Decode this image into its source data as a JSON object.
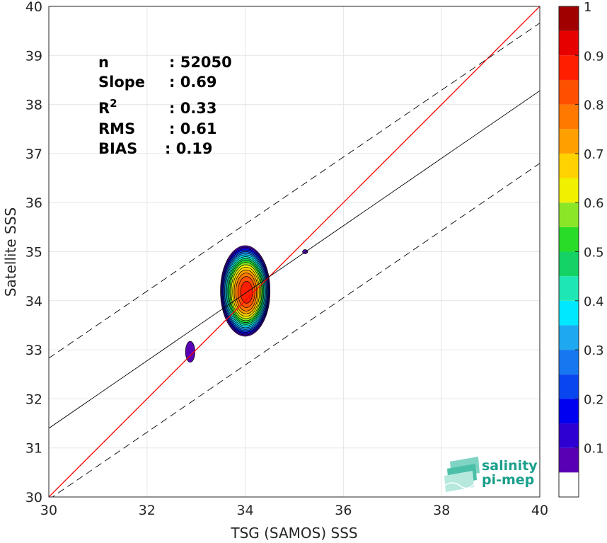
{
  "chart_data": {
    "type": "scatter",
    "subtype": "density contour",
    "xlabel": "TSG (SAMOS) SSS",
    "ylabel": "Satellite SSS",
    "xlim": [
      30,
      40
    ],
    "ylim": [
      30,
      40
    ],
    "xticks": [
      30,
      32,
      34,
      36,
      38,
      40
    ],
    "yticks": [
      30,
      31,
      32,
      33,
      34,
      35,
      36,
      37,
      38,
      39,
      40
    ],
    "grid": true,
    "stats": [
      {
        "label": "n",
        "value": ": 52050"
      },
      {
        "label": "Slope",
        "value": ": 0.69"
      },
      {
        "label": "R",
        "sup": "2",
        "value": ": 0.33"
      },
      {
        "label": "RMS",
        "value": ": 0.61"
      },
      {
        "label": "BIAS",
        "value": ": 0.19"
      }
    ],
    "lines": [
      {
        "name": "one-to-one",
        "color": "#ff0000",
        "style": "solid",
        "points": [
          [
            30,
            30
          ],
          [
            40,
            40
          ]
        ]
      },
      {
        "name": "regression",
        "color": "#000000",
        "style": "solid",
        "points": [
          [
            30,
            31.4
          ],
          [
            40,
            38.28
          ]
        ]
      },
      {
        "name": "upper-bound",
        "color": "#000000",
        "style": "dashed",
        "points": [
          [
            30,
            32.83
          ],
          [
            40,
            39.66
          ]
        ]
      },
      {
        "name": "lower-bound",
        "color": "#000000",
        "style": "dashed",
        "points": [
          [
            30,
            29.95
          ],
          [
            40,
            36.8
          ]
        ]
      }
    ],
    "density_blobs": [
      {
        "cx": 34.0,
        "cy": 34.2,
        "rx": 0.52,
        "ry": 0.95,
        "peak": 0.9
      },
      {
        "cx": 32.88,
        "cy": 32.96,
        "rx": 0.18,
        "ry": 0.4,
        "peak": 0.07
      },
      {
        "cx": 35.22,
        "cy": 35.0,
        "rx": 0.1,
        "ry": 0.08,
        "peak": 0.07
      }
    ],
    "colorbar": {
      "ticks": [
        "0.1",
        "0.2",
        "0.3",
        "0.4",
        "0.5",
        "0.6",
        "0.7",
        "0.8",
        "0.9",
        "1"
      ],
      "range": [
        0,
        1
      ],
      "levels": [
        {
          "from": 0.0,
          "to": 0.05,
          "color": "#ffffff"
        },
        {
          "from": 0.05,
          "to": 0.1,
          "color": "#5a00b4"
        },
        {
          "from": 0.1,
          "to": 0.15,
          "color": "#2e00d2"
        },
        {
          "from": 0.15,
          "to": 0.2,
          "color": "#0000f0"
        },
        {
          "from": 0.2,
          "to": 0.25,
          "color": "#0a46f0"
        },
        {
          "from": 0.25,
          "to": 0.3,
          "color": "#1678f0"
        },
        {
          "from": 0.3,
          "to": 0.35,
          "color": "#1ea8f0"
        },
        {
          "from": 0.35,
          "to": 0.4,
          "color": "#00e8ff"
        },
        {
          "from": 0.4,
          "to": 0.45,
          "color": "#1ee6b4"
        },
        {
          "from": 0.45,
          "to": 0.5,
          "color": "#14d264"
        },
        {
          "from": 0.5,
          "to": 0.55,
          "color": "#28dc28"
        },
        {
          "from": 0.55,
          "to": 0.6,
          "color": "#8ce628"
        },
        {
          "from": 0.6,
          "to": 0.65,
          "color": "#f0f000"
        },
        {
          "from": 0.65,
          "to": 0.7,
          "color": "#ffd200"
        },
        {
          "from": 0.7,
          "to": 0.75,
          "color": "#ffa000"
        },
        {
          "from": 0.75,
          "to": 0.8,
          "color": "#ff7800"
        },
        {
          "from": 0.8,
          "to": 0.85,
          "color": "#ff5000"
        },
        {
          "from": 0.85,
          "to": 0.9,
          "color": "#ff1e00"
        },
        {
          "from": 0.9,
          "to": 0.95,
          "color": "#e60000"
        },
        {
          "from": 0.95,
          "to": 1.0,
          "color": "#a00000"
        }
      ]
    }
  },
  "logo": {
    "line1": "salinity",
    "line2": "pi-mep"
  }
}
